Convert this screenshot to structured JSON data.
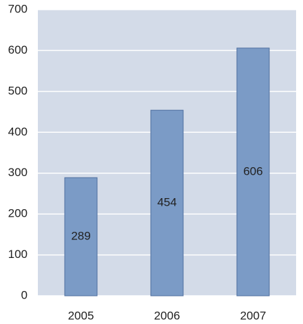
{
  "chart_data": {
    "type": "bar",
    "categories": [
      "2005",
      "2006",
      "2007"
    ],
    "values": [
      289,
      454,
      606
    ],
    "color": "#7b9bc6",
    "edge_color": "#4f6f9f",
    "plot_background": "#d3dbe8",
    "ylim": [
      0,
      700
    ],
    "yticks": [
      0,
      100,
      200,
      300,
      400,
      500,
      600,
      700
    ],
    "grid": true,
    "value_labels_shown": true
  }
}
